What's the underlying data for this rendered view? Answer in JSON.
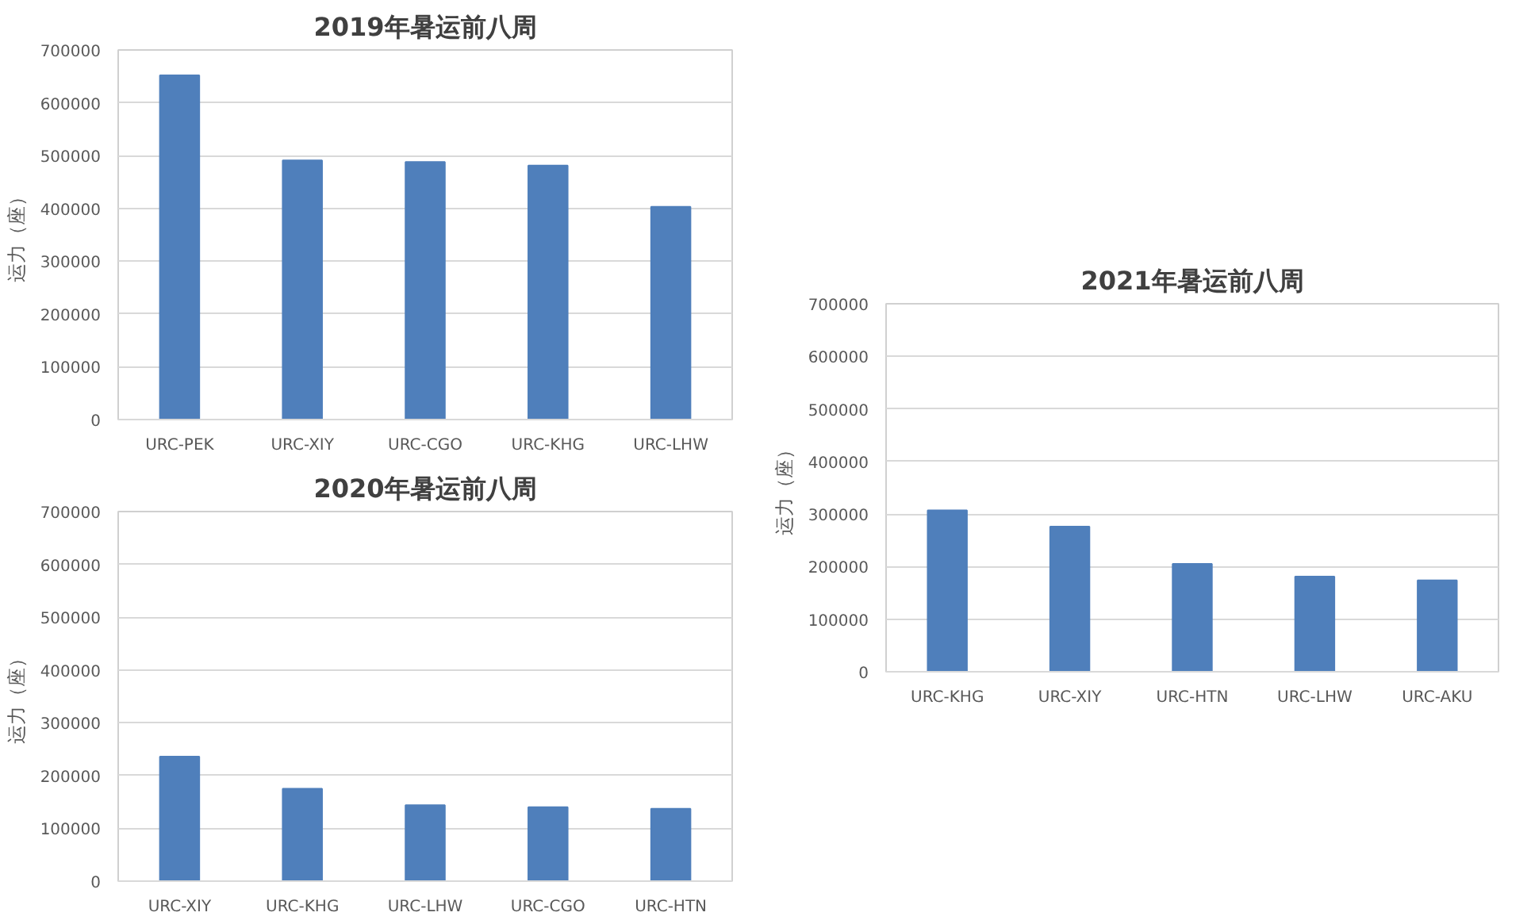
{
  "chart_data": [
    {
      "type": "bar",
      "title": "2019年暑运前八周",
      "ylabel": "运力（座）",
      "categories": [
        "URC-PEK",
        "URC-XIY",
        "URC-CGO",
        "URC-KHG",
        "URC-LHW"
      ],
      "values": [
        652000,
        491000,
        488000,
        481000,
        403000
      ],
      "color": "#4f7fbb",
      "ylim": [
        0,
        700000
      ],
      "yticks": [
        0,
        100000,
        200000,
        300000,
        400000,
        500000,
        600000,
        700000
      ],
      "grid": "y"
    },
    {
      "type": "bar",
      "title": "2020年暑运前八周",
      "ylabel": "运力（座）",
      "categories": [
        "URC-XIY",
        "URC-KHG",
        "URC-LHW",
        "URC-CGO",
        "URC-HTN"
      ],
      "values": [
        236000,
        175000,
        144000,
        140000,
        137000
      ],
      "color": "#4f7fbb",
      "ylim": [
        0,
        700000
      ],
      "yticks": [
        0,
        100000,
        200000,
        300000,
        400000,
        500000,
        600000,
        700000
      ],
      "grid": "y"
    },
    {
      "type": "bar",
      "title": "2021年暑运前八周",
      "ylabel": "运力（座）",
      "categories": [
        "URC-KHG",
        "URC-XIY",
        "URC-HTN",
        "URC-LHW",
        "URC-AKU"
      ],
      "values": [
        307000,
        276000,
        205000,
        181000,
        174000
      ],
      "color": "#4f7fbb",
      "ylim": [
        0,
        700000
      ],
      "yticks": [
        0,
        100000,
        200000,
        300000,
        400000,
        500000,
        600000,
        700000
      ],
      "grid": "y"
    }
  ]
}
